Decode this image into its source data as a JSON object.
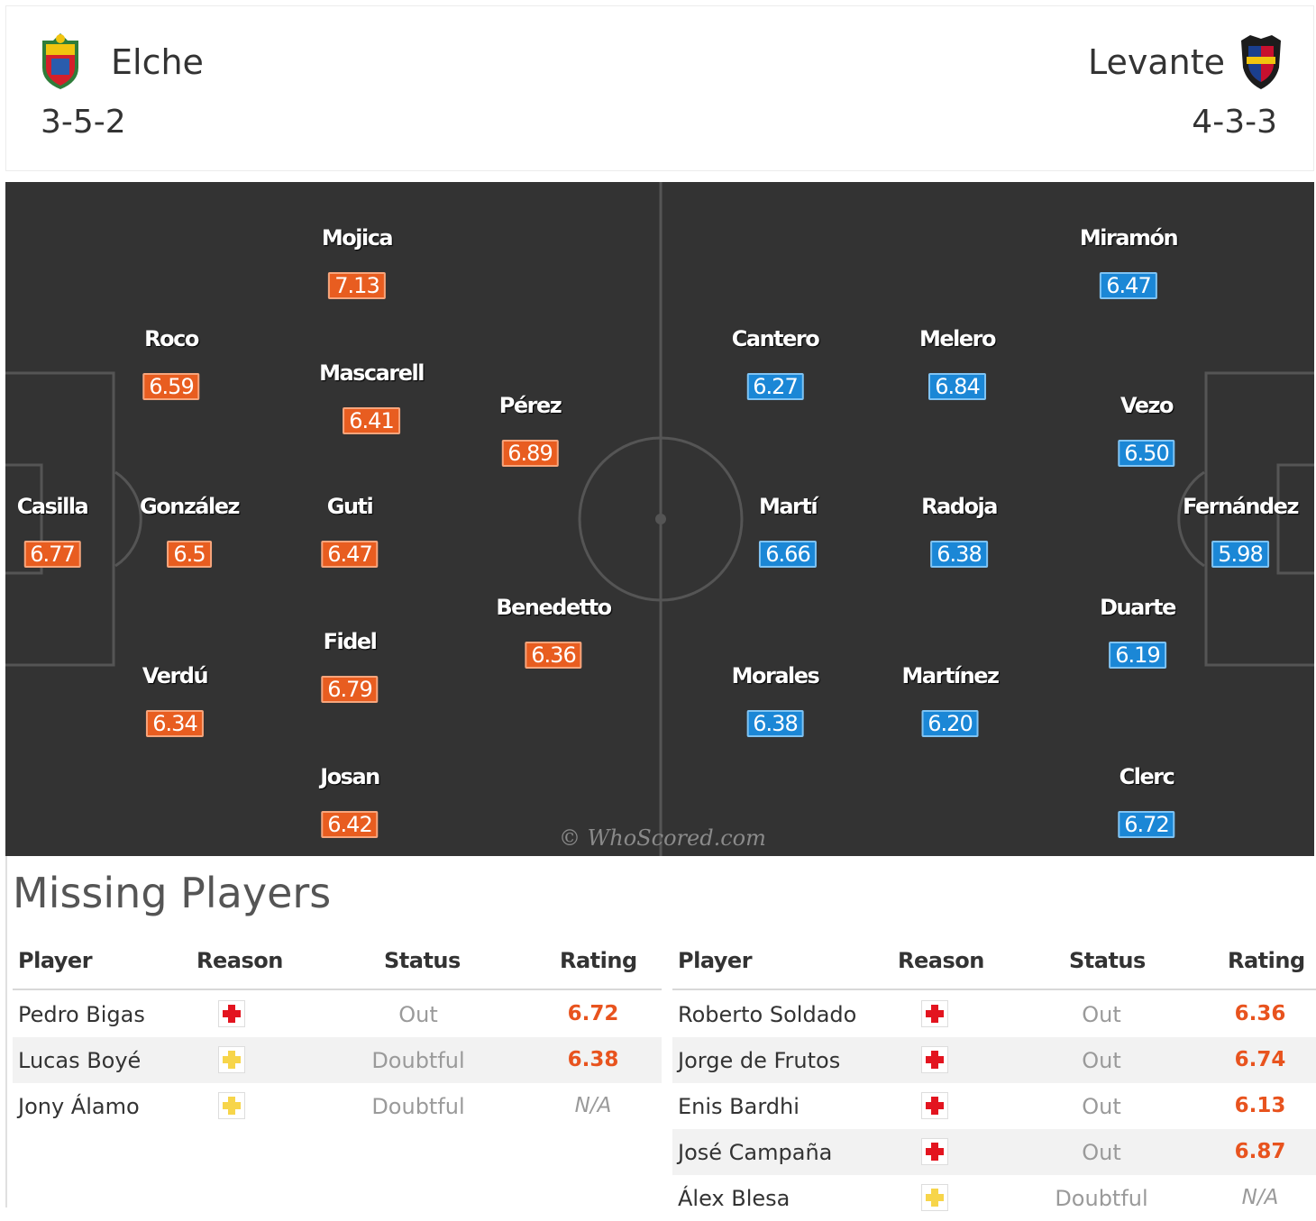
{
  "home": {
    "name": "Elche",
    "formation": "3-5-2",
    "color": "#e85d20"
  },
  "away": {
    "name": "Levante",
    "formation": "4-3-3",
    "color": "#1b87d6"
  },
  "home_players": [
    {
      "name": "Mojica",
      "rating": "7.13"
    },
    {
      "name": "Roco",
      "rating": "6.59"
    },
    {
      "name": "Mascarell",
      "rating": "6.41"
    },
    {
      "name": "Pérez",
      "rating": "6.89"
    },
    {
      "name": "Casilla",
      "rating": "6.77"
    },
    {
      "name": "González",
      "rating": "6.5"
    },
    {
      "name": "Guti",
      "rating": "6.47"
    },
    {
      "name": "Benedetto",
      "rating": "6.36"
    },
    {
      "name": "Fidel",
      "rating": "6.79"
    },
    {
      "name": "Verdú",
      "rating": "6.34"
    },
    {
      "name": "Josan",
      "rating": "6.42"
    }
  ],
  "away_players": [
    {
      "name": "Miramón",
      "rating": "6.47"
    },
    {
      "name": "Cantero",
      "rating": "6.27"
    },
    {
      "name": "Melero",
      "rating": "6.84"
    },
    {
      "name": "Vezo",
      "rating": "6.50"
    },
    {
      "name": "Martí",
      "rating": "6.66"
    },
    {
      "name": "Radoja",
      "rating": "6.38"
    },
    {
      "name": "Fernández",
      "rating": "5.98"
    },
    {
      "name": "Duarte",
      "rating": "6.19"
    },
    {
      "name": "Morales",
      "rating": "6.38"
    },
    {
      "name": "Martínez",
      "rating": "6.20"
    },
    {
      "name": "Clerc",
      "rating": "6.72"
    }
  ],
  "watermark": "© WhoScored.com",
  "missing": {
    "title": "Missing Players",
    "headers": {
      "player": "Player",
      "reason": "Reason",
      "status": "Status",
      "rating": "Rating"
    },
    "home": [
      {
        "player": "Pedro Bigas",
        "reason": "injury-icon",
        "status": "Out",
        "rating": "6.72"
      },
      {
        "player": "Lucas Boyé",
        "reason": "doubtful-icon",
        "status": "Doubtful",
        "rating": "6.38"
      },
      {
        "player": "Jony Álamo",
        "reason": "doubtful-icon",
        "status": "Doubtful",
        "rating": "N/A"
      }
    ],
    "away": [
      {
        "player": "Roberto Soldado",
        "reason": "injury-icon",
        "status": "Out",
        "rating": "6.36"
      },
      {
        "player": "Jorge de Frutos",
        "reason": "injury-icon",
        "status": "Out",
        "rating": "6.74"
      },
      {
        "player": "Enis Bardhi",
        "reason": "injury-icon",
        "status": "Out",
        "rating": "6.13"
      },
      {
        "player": "José Campaña",
        "reason": "injury-icon",
        "status": "Out",
        "rating": "6.87"
      },
      {
        "player": "Álex Blesa",
        "reason": "doubtful-icon",
        "status": "Doubtful",
        "rating": "N/A"
      }
    ]
  }
}
